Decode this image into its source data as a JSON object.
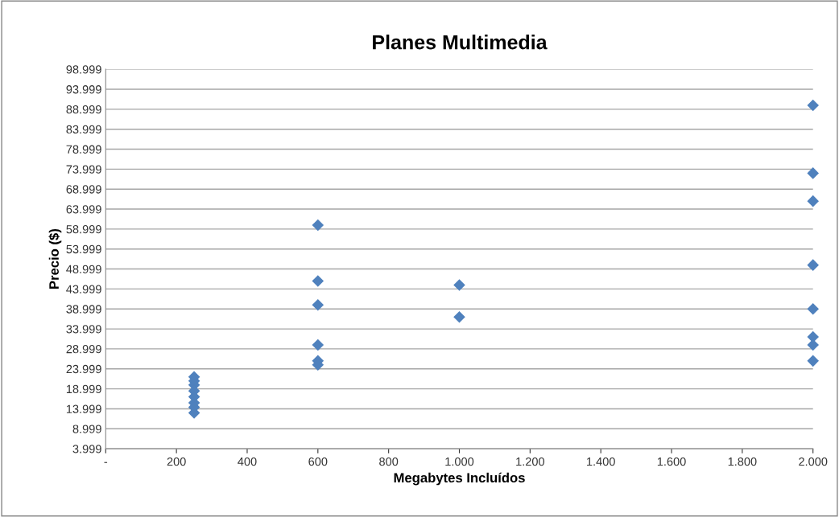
{
  "chart_data": {
    "type": "scatter",
    "title": "Planes Multimedia",
    "xlabel": "Megabytes Incluídos",
    "ylabel": "Precio ($)",
    "x": [
      250,
      250,
      250,
      250,
      250,
      250,
      250,
      250,
      600,
      600,
      600,
      600,
      600,
      600,
      1000,
      1000,
      2000,
      2000,
      2000,
      2000,
      2000,
      2000,
      2000,
      2000
    ],
    "values": [
      21990,
      20990,
      19990,
      18490,
      16990,
      15490,
      14390,
      12990,
      59990,
      45990,
      39990,
      29990,
      25990,
      24990,
      44990,
      36990,
      89990,
      72990,
      65990,
      49990,
      38990,
      31990,
      29990,
      25990
    ],
    "color": "#4f81bd",
    "marker": "diamond",
    "grid": "y",
    "xlim": [
      0,
      2000
    ],
    "xticks": [
      {
        "value": 0,
        "label": "-"
      },
      200,
      400,
      600,
      800,
      {
        "value": 1000,
        "label": "1.000"
      },
      {
        "value": 1200,
        "label": "1.200"
      },
      {
        "value": 1400,
        "label": "1.400"
      },
      {
        "value": 1600,
        "label": "1.600"
      },
      {
        "value": 1800,
        "label": "1.800"
      },
      {
        "value": 2000,
        "label": "2.000"
      }
    ],
    "ylim": [
      3999,
      98999
    ],
    "yticks": [
      {
        "value": 3999,
        "label": "3.999"
      },
      {
        "value": 8999,
        "label": "8.999"
      },
      {
        "value": 13999,
        "label": "13.999"
      },
      {
        "value": 18999,
        "label": "18.999"
      },
      {
        "value": 23999,
        "label": "23.999"
      },
      {
        "value": 28999,
        "label": "28.999"
      },
      {
        "value": 33999,
        "label": "33.999"
      },
      {
        "value": 38999,
        "label": "38.999"
      },
      {
        "value": 43999,
        "label": "43.999"
      },
      {
        "value": 48999,
        "label": "48.999"
      },
      {
        "value": 53999,
        "label": "53.999"
      },
      {
        "value": 58999,
        "label": "58.999"
      },
      {
        "value": 63999,
        "label": "63.999"
      },
      {
        "value": 68999,
        "label": "68.999"
      },
      {
        "value": 73999,
        "label": "73.999"
      },
      {
        "value": 78999,
        "label": "78.999"
      },
      {
        "value": 83999,
        "label": "83.999"
      },
      {
        "value": 88999,
        "label": "88.999"
      },
      {
        "value": 93999,
        "label": "93.999"
      },
      {
        "value": 98999,
        "label": "98.999"
      }
    ]
  }
}
